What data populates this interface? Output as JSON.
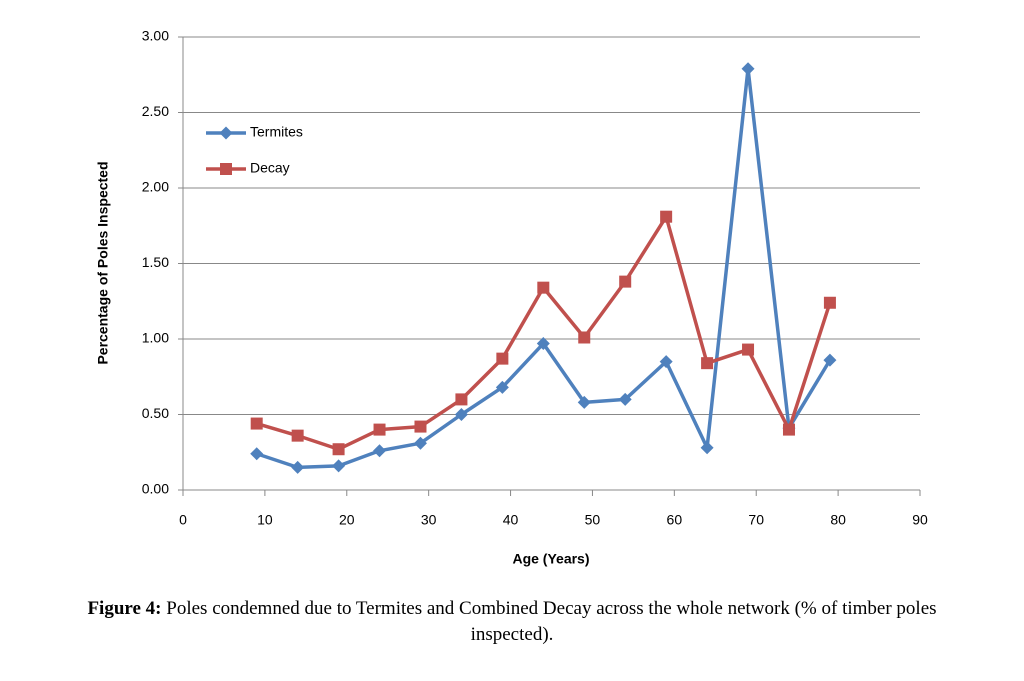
{
  "chart_data": {
    "type": "line",
    "x_label": "Age (Years)",
    "y_label": "Percentage of Poles Inspected",
    "caption_label": "Figure 4:",
    "caption_text": "Poles condemned due to Termites and Combined Decay across the whole network (% of timber poles inspected).",
    "x": [
      9,
      14,
      19,
      24,
      29,
      34,
      39,
      44,
      49,
      54,
      59,
      64,
      69,
      74,
      79
    ],
    "series": [
      {
        "name": "Termites",
        "color": "#4f81bd",
        "marker": "diamond",
        "values": [
          0.24,
          0.15,
          0.16,
          0.26,
          0.31,
          0.5,
          0.68,
          0.97,
          0.58,
          0.6,
          0.85,
          0.28,
          2.79,
          0.41,
          0.86
        ]
      },
      {
        "name": "Decay",
        "color": "#c0504d",
        "marker": "square",
        "values": [
          0.44,
          0.36,
          0.27,
          0.4,
          0.42,
          0.6,
          0.87,
          1.34,
          1.01,
          1.38,
          1.81,
          0.84,
          0.93,
          0.4,
          1.24
        ]
      }
    ],
    "xlim": [
      0,
      90
    ],
    "xticks": [
      0,
      10,
      20,
      30,
      40,
      50,
      60,
      70,
      80,
      90
    ],
    "ylim": [
      0,
      3
    ],
    "yticks": [
      {
        "value": 0,
        "label": "0.00"
      },
      {
        "value": 0.5,
        "label": "0.50"
      },
      {
        "value": 1,
        "label": "1.00"
      },
      {
        "value": 1.5,
        "label": "1.50"
      },
      {
        "value": 2,
        "label": "2.00"
      },
      {
        "value": 2.5,
        "label": "2.50"
      },
      {
        "value": 3,
        "label": "3.00"
      }
    ],
    "grid": true,
    "legend": "upper left"
  }
}
